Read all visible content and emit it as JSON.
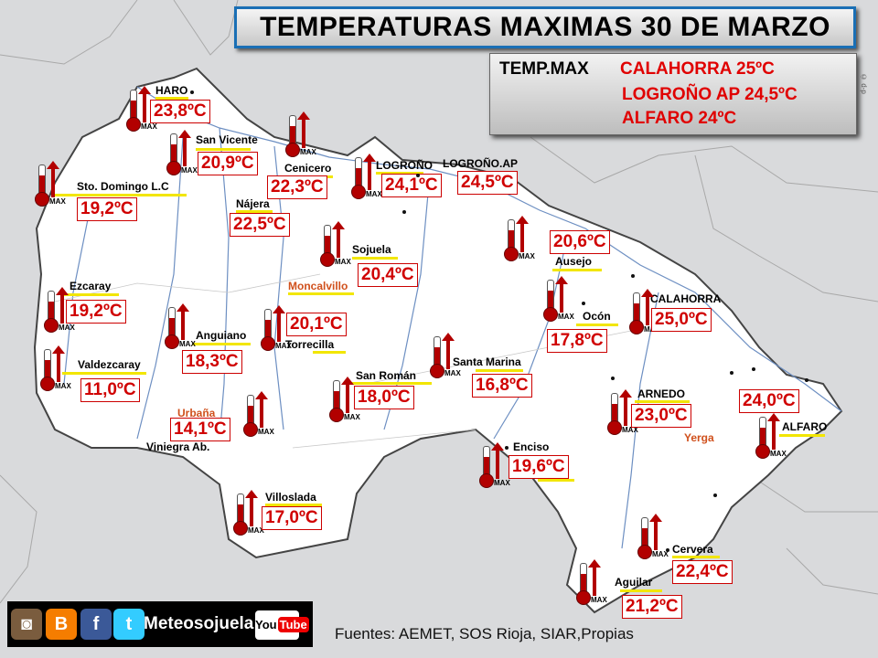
{
  "title": "TEMPERATURAS MAXIMAS 30 DE MARZO",
  "summary": {
    "label": "TEMP.MAX",
    "lines": [
      "CALAHORRA  25ºC",
      "LOGROÑO AP 24,5ºC",
      "ALFARO 24ºC"
    ]
  },
  "thermometer_label": "MAX",
  "stations": [
    {
      "name": "HARO",
      "temp": "23,8ºC"
    },
    {
      "name": "San Vicente",
      "temp": "20,9ºC"
    },
    {
      "name": "Cenicero",
      "temp": "22,3ºC"
    },
    {
      "name": "LOGROÑO",
      "temp": "24,1ºC"
    },
    {
      "name": "LOGROÑO.AP",
      "temp": "24,5ºC"
    },
    {
      "name": "Sto. Domingo L.C",
      "temp": "19,2ºC"
    },
    {
      "name": "Nájera",
      "temp": "22,5ºC"
    },
    {
      "name": "Sojuela",
      "temp": "20,4ºC"
    },
    {
      "name": "Ausejo",
      "temp": "20,6ºC"
    },
    {
      "name": "Ezcaray",
      "temp": "19,2ºC"
    },
    {
      "name": "Torrecilla",
      "temp": "20,1ºC"
    },
    {
      "name": "Anguiano",
      "temp": "18,3ºC"
    },
    {
      "name": "Ocón",
      "temp": "17,8ºC"
    },
    {
      "name": "CALAHORRA",
      "temp": "25,0ºC"
    },
    {
      "name": "Valdezcaray",
      "temp": "11,0ºC"
    },
    {
      "name": "San Román",
      "temp": "18,0ºC"
    },
    {
      "name": "Santa Marina",
      "temp": "16,8ºC"
    },
    {
      "name": "ARNEDO",
      "temp": "23,0ºC"
    },
    {
      "name": "ALFARO",
      "temp": "24,0ºC"
    },
    {
      "name": "Urbaña",
      "temp": "14,1ºC"
    },
    {
      "name": "Enciso",
      "temp": "19,6ºC"
    },
    {
      "name": "Villoslada",
      "temp": "17,0ºC"
    },
    {
      "name": "Cervera",
      "temp": "22,4ºC"
    },
    {
      "name": "Aguilar",
      "temp": "21,2ºC"
    }
  ],
  "labels": {
    "moncalvillo": "Moncalvillo",
    "viniegra": "Viniegra Ab.",
    "yerga": "Yerga"
  },
  "footer": {
    "brand": "Meteosojuela",
    "youtube": "You",
    "youtube_tube": "Tube",
    "sources": "Fuentes: AEMET, SOS Rioja, SIAR,Propias",
    "copyright": "© d-p"
  },
  "colors": {
    "region": "#ffffff",
    "outside": "#d9dadc",
    "temp_text": "#d00000",
    "underline": "#f2e600",
    "river": "#6d8fc2",
    "title_border": "#1a6fb5"
  },
  "icons": [
    "instagram-icon",
    "blogger-icon",
    "facebook-icon",
    "twitter-icon",
    "youtube-icon"
  ]
}
